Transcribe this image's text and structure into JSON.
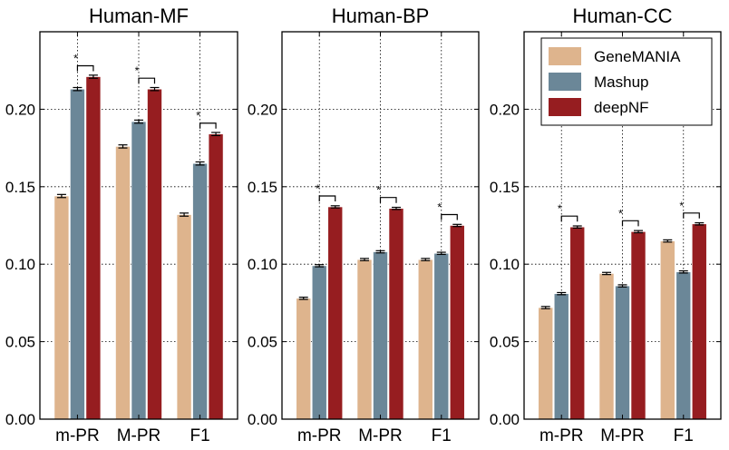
{
  "chart_data": [
    {
      "type": "bar",
      "title": "Human-MF",
      "categories": [
        "m-PR",
        "M-PR",
        "F1"
      ],
      "ylim": [
        0,
        0.25
      ],
      "yticks": [
        "0.00",
        "0.05",
        "0.10",
        "0.15",
        "0.20"
      ],
      "grid": true,
      "series": [
        {
          "name": "GeneMANIA",
          "values": [
            0.144,
            0.176,
            0.132
          ],
          "errors": [
            0.001,
            0.001,
            0.001
          ]
        },
        {
          "name": "Mashup",
          "values": [
            0.213,
            0.192,
            0.165
          ],
          "errors": [
            0.001,
            0.001,
            0.001
          ]
        },
        {
          "name": "deepNF",
          "values": [
            0.221,
            0.213,
            0.184
          ],
          "errors": [
            0.001,
            0.001,
            0.001
          ]
        }
      ],
      "annotations": [
        "*",
        "*",
        "*"
      ]
    },
    {
      "type": "bar",
      "title": "Human-BP",
      "categories": [
        "m-PR",
        "M-PR",
        "F1"
      ],
      "ylim": [
        0,
        0.25
      ],
      "yticks": [
        "0.00",
        "0.05",
        "0.10",
        "0.15",
        "0.20"
      ],
      "grid": true,
      "series": [
        {
          "name": "GeneMANIA",
          "values": [
            0.078,
            0.103,
            0.103
          ],
          "errors": [
            0.0007,
            0.0007,
            0.0007
          ]
        },
        {
          "name": "Mashup",
          "values": [
            0.099,
            0.108,
            0.107
          ],
          "errors": [
            0.0007,
            0.0007,
            0.0007
          ]
        },
        {
          "name": "deepNF",
          "values": [
            0.137,
            0.136,
            0.125
          ],
          "errors": [
            0.0007,
            0.0007,
            0.0007
          ]
        }
      ],
      "annotations": [
        "*",
        "*",
        "*"
      ]
    },
    {
      "type": "bar",
      "title": "Human-CC",
      "categories": [
        "m-PR",
        "M-PR",
        "F1"
      ],
      "ylim": [
        0,
        0.25
      ],
      "yticks": [
        "0.00",
        "0.05",
        "0.10",
        "0.15",
        "0.20"
      ],
      "grid": true,
      "legend": "top-right",
      "series": [
        {
          "name": "GeneMANIA",
          "values": [
            0.072,
            0.094,
            0.115
          ],
          "errors": [
            0.0007,
            0.0007,
            0.0007
          ]
        },
        {
          "name": "Mashup",
          "values": [
            0.081,
            0.086,
            0.095
          ],
          "errors": [
            0.0007,
            0.0007,
            0.0007
          ]
        },
        {
          "name": "deepNF",
          "values": [
            0.124,
            0.121,
            0.126
          ],
          "errors": [
            0.0007,
            0.0007,
            0.0007
          ]
        }
      ],
      "annotations": [
        "*",
        "*",
        "*"
      ]
    }
  ],
  "colors": {
    "GeneMANIA": "#deb48d",
    "Mashup": "#6b8798",
    "deepNF": "#961d20"
  },
  "legend": [
    "GeneMANIA",
    "Mashup",
    "deepNF"
  ]
}
